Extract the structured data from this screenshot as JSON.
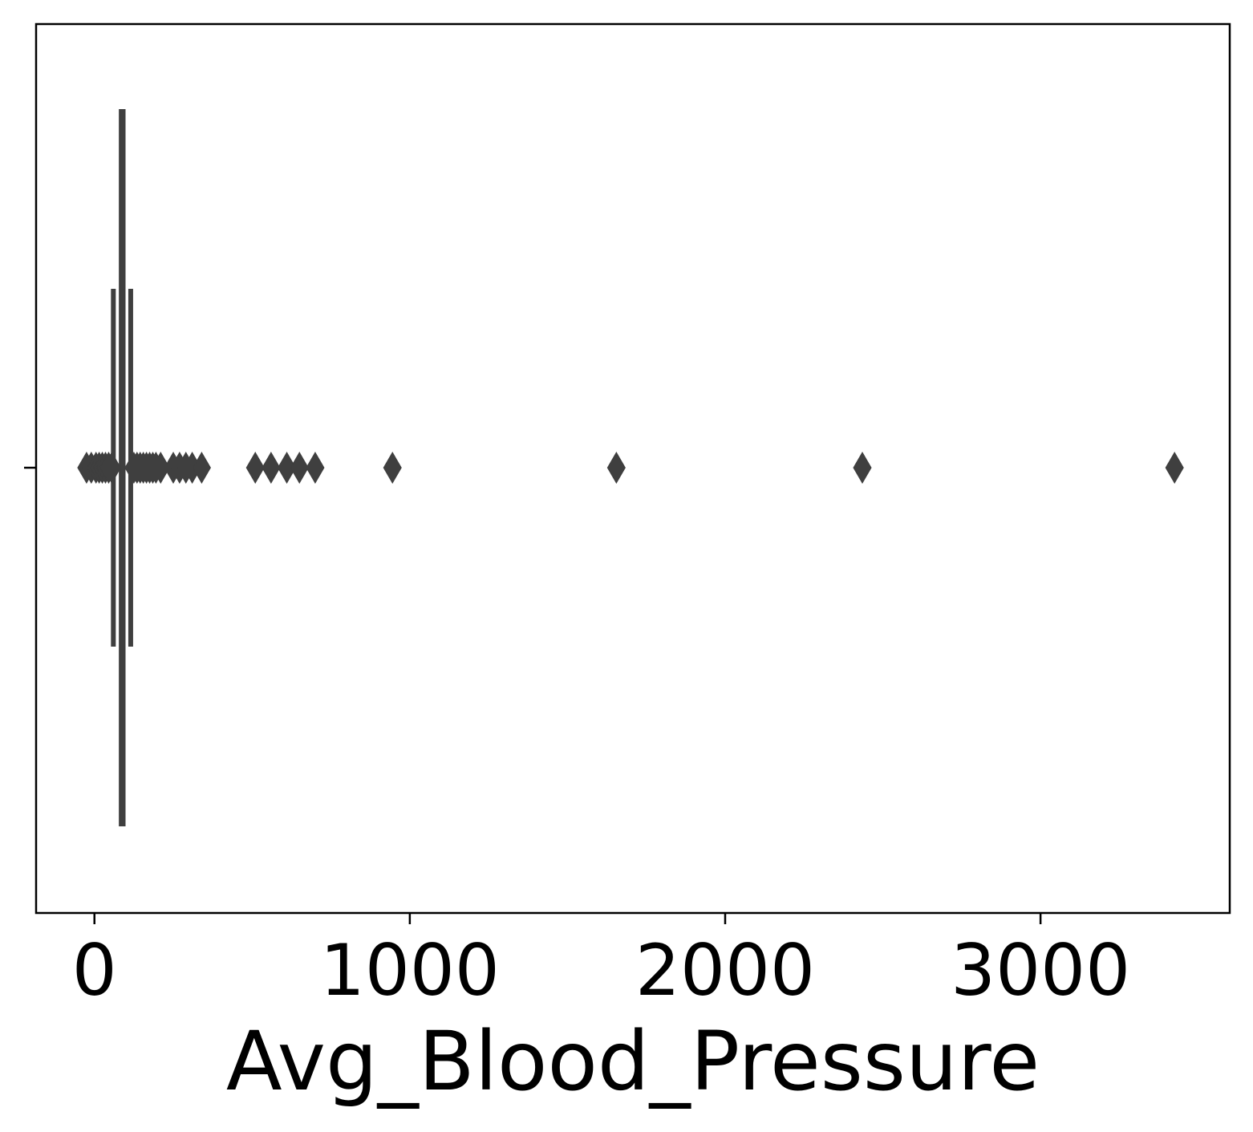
{
  "chart_data": {
    "type": "box",
    "orientation": "horizontal",
    "xlabel": "Avg_Blood_Pressure",
    "ylabel": "",
    "xlim": [
      -185,
      3600
    ],
    "xticks": [
      0,
      1000,
      2000,
      3000
    ],
    "xtick_labels": [
      "0",
      "1000",
      "2000",
      "3000"
    ],
    "grid": false,
    "legend": "none",
    "color": "#3f3f3f",
    "box": {
      "whisker_low": 60,
      "q1": 85,
      "median": 88,
      "q3": 91,
      "whisker_high": 115
    },
    "outliers": [
      -25,
      -10,
      5,
      15,
      25,
      35,
      45,
      55,
      125,
      135,
      145,
      155,
      165,
      175,
      185,
      195,
      210,
      250,
      270,
      290,
      310,
      340,
      510,
      560,
      610,
      650,
      700,
      945,
      1655,
      2435,
      3425
    ]
  }
}
